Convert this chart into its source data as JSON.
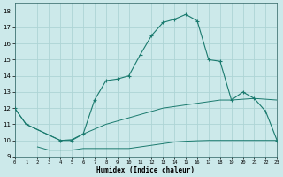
{
  "title": "",
  "xlabel": "Humidex (Indice chaleur)",
  "bg_color": "#cce9ea",
  "grid_color": "#aed4d5",
  "line_color": "#1a7a6e",
  "xlim": [
    0,
    23
  ],
  "ylim": [
    9,
    18.5
  ],
  "xticks": [
    0,
    1,
    2,
    3,
    4,
    5,
    6,
    7,
    8,
    9,
    10,
    11,
    12,
    13,
    14,
    15,
    16,
    17,
    18,
    19,
    20,
    21,
    22,
    23
  ],
  "yticks": [
    9,
    10,
    11,
    12,
    13,
    14,
    15,
    16,
    17,
    18
  ],
  "main_x": [
    0,
    1,
    4,
    5,
    6,
    7,
    8,
    9,
    10,
    11,
    12,
    13,
    14,
    15,
    16,
    17,
    18,
    19,
    20,
    21,
    22,
    23
  ],
  "main_y": [
    12.0,
    11.0,
    10.0,
    10.0,
    10.4,
    12.5,
    13.7,
    13.8,
    14.0,
    15.3,
    16.5,
    17.3,
    17.5,
    17.8,
    17.4,
    15.0,
    14.9,
    12.5,
    13.0,
    12.6,
    11.8,
    10.0
  ],
  "flat_x": [
    2,
    3,
    4,
    5,
    6,
    7,
    8,
    9,
    10,
    11,
    12,
    13,
    14,
    15,
    16,
    17,
    18,
    19,
    20,
    21,
    22,
    23
  ],
  "flat_y": [
    9.6,
    9.4,
    9.4,
    9.4,
    9.5,
    9.5,
    9.5,
    9.5,
    9.5,
    9.6,
    9.7,
    9.8,
    9.9,
    9.95,
    9.98,
    10.0,
    10.0,
    10.0,
    10.0,
    10.0,
    10.0,
    10.0
  ],
  "mid_x": [
    0,
    1,
    4,
    5,
    6,
    7,
    8,
    9,
    10,
    11,
    12,
    13,
    14,
    15,
    16,
    17,
    18,
    19,
    20,
    21,
    22,
    23
  ],
  "mid_y": [
    12.0,
    11.0,
    10.0,
    10.05,
    10.4,
    10.7,
    11.0,
    11.2,
    11.4,
    11.6,
    11.8,
    12.0,
    12.1,
    12.2,
    12.3,
    12.4,
    12.5,
    12.5,
    12.55,
    12.6,
    12.55,
    12.5
  ]
}
